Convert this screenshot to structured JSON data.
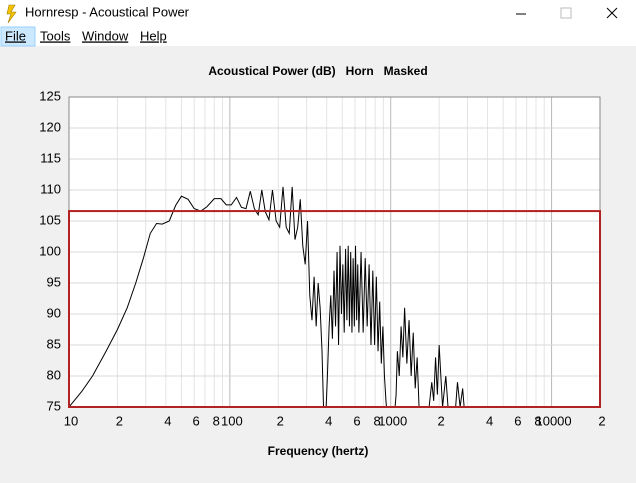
{
  "window": {
    "title": "Hornresp - Acoustical Power",
    "menu": [
      "File",
      "Tools",
      "Window",
      "Help"
    ]
  },
  "chart_data": {
    "type": "line",
    "title": "Acoustical Power (dB)   Horn   Masked",
    "xlabel": "Frequency (hertz)",
    "xscale": "log",
    "xlim": [
      10,
      20000
    ],
    "ylim": [
      75,
      125
    ],
    "xticks": [
      10,
      {
        "value": 20,
        "label": "2"
      },
      {
        "value": 40,
        "label": "4"
      },
      {
        "value": 60,
        "label": "6"
      },
      {
        "value": 80,
        "label": "8"
      },
      100,
      {
        "value": 200,
        "label": "2"
      },
      {
        "value": 400,
        "label": "4"
      },
      {
        "value": 600,
        "label": "6"
      },
      {
        "value": 800,
        "label": "8"
      },
      1000,
      {
        "value": 2000,
        "label": "2"
      },
      {
        "value": 4000,
        "label": "4"
      },
      {
        "value": 6000,
        "label": "6"
      },
      {
        "value": 8000,
        "label": "8"
      },
      10000,
      {
        "value": 20000,
        "label": "2"
      }
    ],
    "xminor": [
      30,
      50,
      70,
      90,
      300,
      500,
      700,
      900,
      3000,
      5000,
      7000,
      9000
    ],
    "yticks": [
      75,
      80,
      85,
      90,
      95,
      100,
      105,
      110,
      115,
      120,
      125
    ],
    "grid": true,
    "mask_level": 106.6,
    "mask_color": "#b22222",
    "x": [
      10,
      12,
      14,
      17,
      20,
      23,
      26,
      29,
      32,
      35,
      38,
      42,
      46,
      50,
      55,
      60,
      66,
      72,
      80,
      88,
      95,
      102,
      110,
      118,
      126,
      134,
      142,
      150,
      158,
      166,
      175,
      184,
      194,
      204,
      214,
      224,
      234,
      244,
      254,
      264,
      274,
      284,
      294,
      304,
      314,
      324,
      334,
      344,
      354,
      364,
      374,
      384,
      394,
      404,
      414,
      424,
      434,
      444,
      454,
      464,
      474,
      484,
      494,
      504,
      514,
      524,
      534,
      544,
      554,
      564,
      574,
      584,
      594,
      604,
      614,
      624,
      634,
      654,
      674,
      694,
      714,
      734,
      754,
      774,
      794,
      814,
      834,
      854,
      874,
      894,
      914,
      934,
      954,
      1000,
      1050,
      1080,
      1100,
      1130,
      1160,
      1190,
      1220,
      1260,
      1300,
      1340,
      1380,
      1420,
      1460,
      1500,
      1550,
      1700,
      1800,
      1850,
      1900,
      1950,
      2000,
      2100,
      2200,
      2300,
      2500,
      2600,
      2700,
      2800,
      2900,
      20000
    ],
    "series": [
      {
        "name": "Horn",
        "color": "#000000",
        "values": [
          75,
          77.5,
          80,
          84,
          87.5,
          91,
          95,
          99,
          103,
          104.6,
          104.5,
          105,
          107.5,
          109,
          108.5,
          107,
          106.6,
          107.3,
          108.6,
          108.6,
          107.6,
          107.6,
          108.8,
          107.2,
          107,
          109.8,
          107,
          106,
          110,
          106.5,
          105.2,
          110,
          105,
          104,
          110.5,
          104,
          103,
          110.5,
          102,
          104,
          108.5,
          101,
          98,
          105,
          93,
          89,
          96,
          88,
          95,
          91,
          84,
          73,
          73,
          80,
          88,
          93,
          86,
          97,
          88,
          100,
          85,
          101,
          90,
          98,
          87,
          100.5,
          89,
          101,
          88,
          100,
          87,
          99,
          88,
          101,
          89,
          98,
          87,
          100,
          87,
          99,
          88,
          98,
          85,
          97,
          85,
          96,
          84,
          92,
          82,
          88,
          80,
          76,
          73,
          73,
          73,
          77,
          84,
          80,
          88,
          83,
          91,
          82,
          89,
          80,
          87,
          78,
          83,
          75,
          73,
          73,
          79,
          76,
          83,
          77,
          85,
          75,
          80,
          73,
          73,
          79,
          75,
          78,
          73,
          73
        ]
      }
    ]
  }
}
